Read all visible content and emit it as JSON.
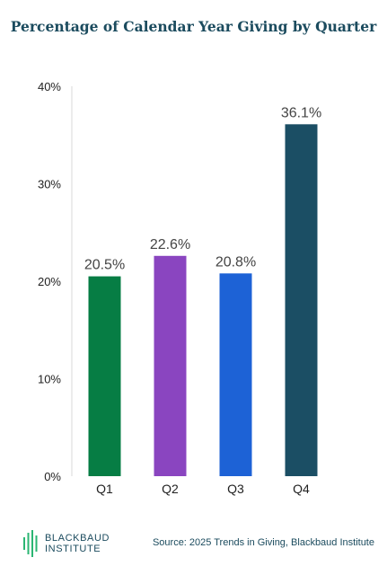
{
  "chart_data": {
    "type": "bar",
    "title": "Percentage of Calendar Year Giving by Quarter",
    "categories": [
      "Q1",
      "Q2",
      "Q3",
      "Q4"
    ],
    "values": [
      20.5,
      22.6,
      20.8,
      36.1
    ],
    "value_labels": [
      "20.5%",
      "22.6%",
      "20.8%",
      "36.1%"
    ],
    "bar_colors": [
      "#067d44",
      "#8a45c0",
      "#1d62d6",
      "#1b4e64"
    ],
    "ylim": [
      0,
      40
    ],
    "yticks": [
      0,
      10,
      20,
      30,
      40
    ],
    "ytick_labels": [
      "0%",
      "10%",
      "20%",
      "30%",
      "40%"
    ],
    "xlabel": "",
    "ylabel": "",
    "grid": false,
    "legend": "none"
  },
  "footer": {
    "logo_line1": "BLACKBAUD",
    "logo_line2": "INSTITUTE",
    "source": "Source: 2025 Trends in Giving, Blackbaud Institute"
  },
  "colors": {
    "title": "#1b4b5e",
    "logo_accent": "#2bb673"
  }
}
